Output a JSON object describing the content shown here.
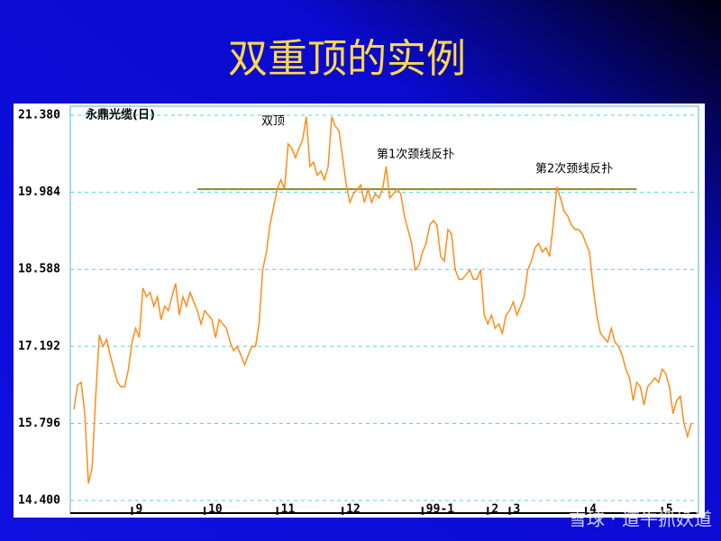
{
  "chart_data": {
    "type": "line",
    "title": "双重顶的实例",
    "subtitle": "永鼎光缆(日)",
    "annotations": [
      "双顶",
      "第1次颈线反扑",
      "第2次颈线反扑"
    ],
    "watermark": "雪球 · 道牛抓妖道",
    "color": "#ff8c1a",
    "grid": true,
    "xlim": [
      -1,
      172
    ],
    "xticks": [
      {
        "value": 16,
        "label": "9"
      },
      {
        "value": 36,
        "label": "10"
      },
      {
        "value": 56,
        "label": "11"
      },
      {
        "value": 74,
        "label": "12"
      },
      {
        "value": 96,
        "label": "99-1"
      },
      {
        "value": 114,
        "label": "2"
      },
      {
        "value": 120,
        "label": "3"
      },
      {
        "value": 141,
        "label": "4"
      },
      {
        "value": 162,
        "label": "5"
      }
    ],
    "ylim": [
      14.4,
      21.38
    ],
    "yticks": [
      {
        "value": 14.4,
        "label": "14.400"
      },
      {
        "value": 15.796,
        "label": "15.796"
      },
      {
        "value": 17.192,
        "label": "17.192"
      },
      {
        "value": 18.588,
        "label": "18.588"
      },
      {
        "value": 19.984,
        "label": "19.984"
      },
      {
        "value": 21.38,
        "label": "21.380"
      }
    ],
    "neckline": {
      "value": 20.04,
      "x": [
        34,
        155
      ],
      "color": "#8b8b2a"
    },
    "values": [
      16.05,
      16.49,
      16.54,
      15.97,
      14.71,
      14.99,
      16.29,
      17.4,
      17.19,
      17.32,
      17.03,
      16.78,
      16.54,
      16.46,
      16.46,
      16.78,
      17.27,
      17.52,
      17.35,
      18.25,
      18.09,
      18.17,
      17.92,
      18.09,
      17.68,
      17.92,
      17.84,
      18.09,
      18.33,
      17.76,
      18.09,
      17.92,
      18.17,
      18.0,
      17.84,
      17.6,
      17.84,
      17.76,
      17.68,
      17.35,
      17.68,
      17.6,
      17.52,
      17.27,
      17.11,
      17.19,
      17.03,
      16.86,
      17.03,
      17.19,
      17.19,
      17.6,
      18.58,
      18.9,
      19.39,
      19.72,
      20.04,
      20.21,
      20.04,
      20.86,
      20.78,
      20.61,
      20.78,
      20.94,
      21.35,
      20.45,
      20.53,
      20.29,
      20.37,
      20.21,
      20.45,
      21.35,
      21.18,
      21.1,
      20.61,
      20.12,
      19.8,
      19.96,
      20.04,
      20.12,
      19.8,
      20.04,
      19.8,
      19.96,
      19.88,
      20.04,
      20.45,
      19.88,
      19.96,
      20.04,
      19.96,
      19.55,
      19.31,
      19.06,
      18.58,
      18.66,
      18.9,
      19.06,
      19.39,
      19.47,
      19.39,
      18.82,
      18.74,
      19.31,
      19.23,
      18.58,
      18.41,
      18.41,
      18.49,
      18.58,
      18.41,
      18.41,
      18.58,
      17.76,
      17.6,
      17.76,
      17.52,
      17.6,
      17.43,
      17.76,
      17.84,
      18.0,
      17.76,
      17.92,
      18.09,
      18.58,
      18.74,
      18.98,
      19.06,
      18.9,
      18.98,
      18.82,
      19.39,
      20.08,
      19.88,
      19.64,
      19.55,
      19.39,
      19.31,
      19.31,
      19.23,
      19.06,
      18.9,
      18.25,
      17.76,
      17.43,
      17.35,
      17.27,
      17.52,
      17.27,
      17.19,
      17.03,
      16.78,
      16.62,
      16.21,
      16.54,
      16.46,
      16.13,
      16.46,
      16.54,
      16.62,
      16.54,
      16.78,
      16.7,
      16.46,
      15.97,
      16.21,
      16.29,
      15.8,
      15.56,
      15.8
    ]
  }
}
